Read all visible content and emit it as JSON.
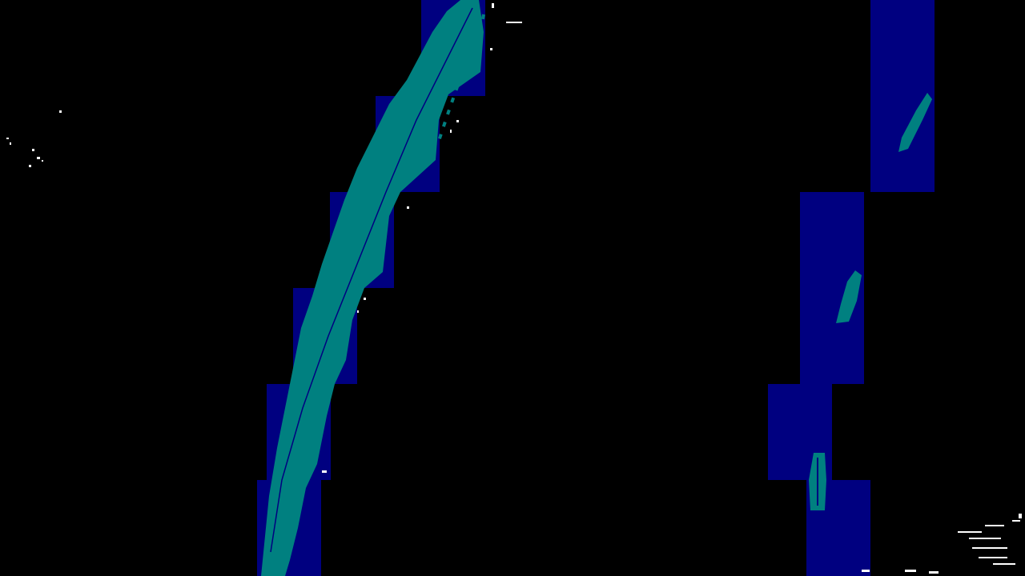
{
  "view": {
    "background_color": "#000000",
    "window_color": "#000080",
    "lane_color": "#008080",
    "noise_color": "#ffffff"
  },
  "left_lane": {
    "description_visible": false
  },
  "right_lane": {
    "description_visible": false
  }
}
